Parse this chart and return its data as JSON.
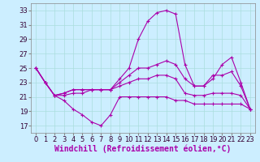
{
  "xlabel": "Windchill (Refroidissement éolien,°C)",
  "background_color": "#cceeff",
  "line_color": "#aa00aa",
  "xlim": [
    -0.5,
    23.5
  ],
  "ylim": [
    16,
    34
  ],
  "yticks": [
    17,
    19,
    21,
    23,
    25,
    27,
    29,
    31,
    33
  ],
  "xticks": [
    0,
    1,
    2,
    3,
    4,
    5,
    6,
    7,
    8,
    9,
    10,
    11,
    12,
    13,
    14,
    15,
    16,
    17,
    18,
    19,
    20,
    21,
    22,
    23
  ],
  "series": [
    [
      25.0,
      23.0,
      21.2,
      21.2,
      21.5,
      21.5,
      22.0,
      22.0,
      22.0,
      22.5,
      23.0,
      23.5,
      23.5,
      24.0,
      24.0,
      23.5,
      21.5,
      21.2,
      21.2,
      21.5,
      21.5,
      21.5,
      21.2,
      19.3
    ],
    [
      25.0,
      23.0,
      21.2,
      21.5,
      22.0,
      22.0,
      22.0,
      22.0,
      22.0,
      23.5,
      25.0,
      29.0,
      31.5,
      32.7,
      33.0,
      32.5,
      25.5,
      22.5,
      22.5,
      24.0,
      24.0,
      24.5,
      22.5,
      19.3
    ],
    [
      25.0,
      23.0,
      21.2,
      21.5,
      22.0,
      22.0,
      22.0,
      22.0,
      22.0,
      23.0,
      24.0,
      25.0,
      25.0,
      25.5,
      26.0,
      25.5,
      23.5,
      22.5,
      22.5,
      23.5,
      25.5,
      26.5,
      23.0,
      19.3
    ],
    [
      25.0,
      23.0,
      21.2,
      20.5,
      19.3,
      18.5,
      17.5,
      17.0,
      18.5,
      21.0,
      21.0,
      21.0,
      21.0,
      21.0,
      21.0,
      20.5,
      20.5,
      20.0,
      20.0,
      20.0,
      20.0,
      20.0,
      20.0,
      19.3
    ]
  ],
  "grid_color": "#aadddd",
  "tick_fontsize": 6,
  "label_fontsize": 7
}
